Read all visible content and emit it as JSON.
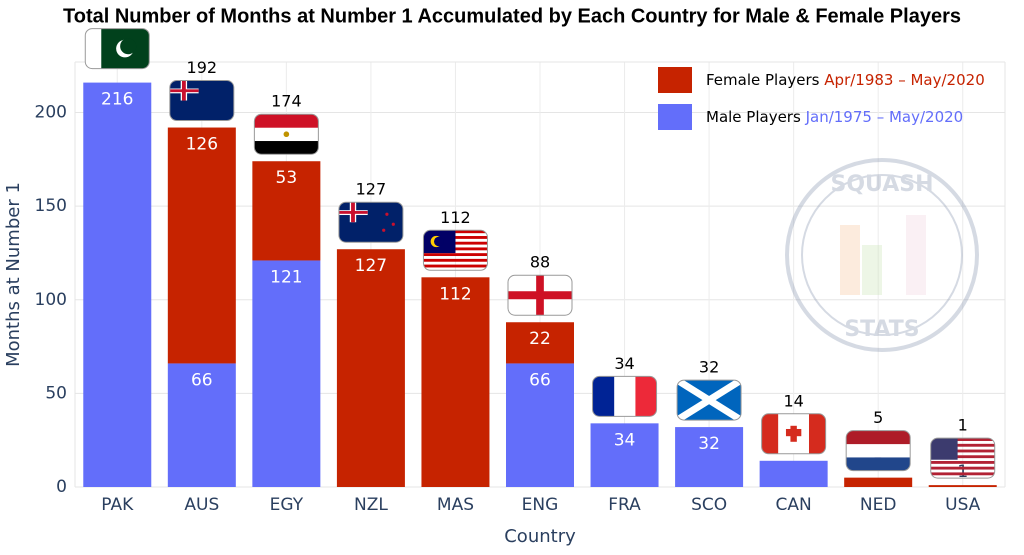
{
  "chart_data": {
    "type": "stacked_bar",
    "title": "Total Number of Months at Number 1 Accumulated by Each Country for Male & Female Players",
    "x_label": "Country",
    "y_label": "Months at Number 1",
    "categories": [
      "PAK",
      "AUS",
      "EGY",
      "NZL",
      "MAS",
      "ENG",
      "FRA",
      "SCO",
      "CAN",
      "NED",
      "USA"
    ],
    "series": [
      {
        "name": "Male Players",
        "period": "Jan/1975 – May/2020",
        "color": "#636efa",
        "values": [
          216,
          66,
          121,
          null,
          null,
          66,
          34,
          32,
          14,
          null,
          null
        ]
      },
      {
        "name": "Female Players",
        "period": "Apr/1983 – May/2020",
        "color": "#c62300",
        "values": [
          null,
          126,
          53,
          127,
          112,
          22,
          null,
          null,
          null,
          5,
          1
        ]
      }
    ],
    "totals": [
      null,
      192,
      174,
      127,
      112,
      88,
      34,
      32,
      14,
      5,
      1
    ],
    "ylim": [
      0,
      227
    ],
    "yticks": [
      0,
      50,
      100,
      150,
      200
    ],
    "grid": true,
    "legend": "top-right",
    "watermark": [
      "SQUASH",
      "STATS"
    ]
  }
}
